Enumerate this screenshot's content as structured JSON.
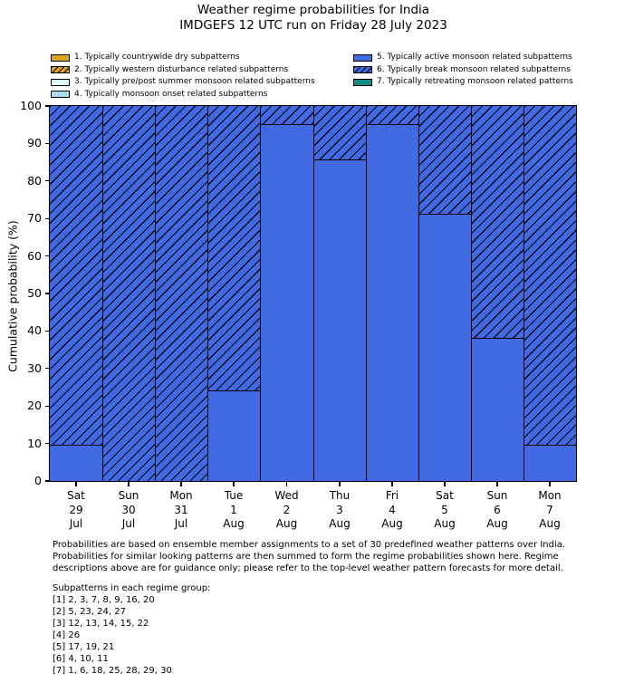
{
  "title": {
    "line1": "Weather regime probabilities for India",
    "line2": "IMDGEFS 12 UTC run on Friday 28 July 2023"
  },
  "legend": {
    "items": [
      {
        "label": "1. Typically countrywide dry subpatterns",
        "color": "#DAA520",
        "hatch": false
      },
      {
        "label": "2. Typically western disturbance related subpatterns",
        "color": "#DAA520",
        "hatch": true
      },
      {
        "label": "3. Typically pre/post summer monsoon related subpatterns",
        "color": "#E0FFFF",
        "hatch": false
      },
      {
        "label": "4. Typically monsoon onset related subpatterns",
        "color": "#ADD8E6",
        "hatch": false
      },
      {
        "label": "5. Typically active monsoon related subpatterns",
        "color": "#4169E1",
        "hatch": false
      },
      {
        "label": "6. Typically break monsoon related subpatterns",
        "color": "#4169E1",
        "hatch": true
      },
      {
        "label": "7. Typically retreating monsoon related patterns",
        "color": "#128A80",
        "hatch": false
      }
    ]
  },
  "chart_data": {
    "type": "bar",
    "stacked": true,
    "title": "Weather regime probabilities for India",
    "subtitle": "IMDGEFS 12 UTC run on Friday 28 July 2023",
    "ylabel": "Cumulative probability (%)",
    "xlabel": "",
    "ylim": [
      0,
      100
    ],
    "yticks": [
      0,
      10,
      20,
      30,
      40,
      50,
      60,
      70,
      80,
      90,
      100
    ],
    "grid": false,
    "legend_position": "top",
    "categories": [
      {
        "day": "Sat",
        "date": "29",
        "month": "Jul"
      },
      {
        "day": "Sun",
        "date": "30",
        "month": "Jul"
      },
      {
        "day": "Mon",
        "date": "31",
        "month": "Jul"
      },
      {
        "day": "Tue",
        "date": "1",
        "month": "Aug"
      },
      {
        "day": "Wed",
        "date": "2",
        "month": "Aug"
      },
      {
        "day": "Thu",
        "date": "3",
        "month": "Aug"
      },
      {
        "day": "Fri",
        "date": "4",
        "month": "Aug"
      },
      {
        "day": "Sat",
        "date": "5",
        "month": "Aug"
      },
      {
        "day": "Sun",
        "date": "6",
        "month": "Aug"
      },
      {
        "day": "Mon",
        "date": "7",
        "month": "Aug"
      }
    ],
    "series": [
      {
        "name": "5. Typically active monsoon related subpatterns",
        "color": "#4169E1",
        "hatch": false,
        "values": [
          9.5,
          0,
          0,
          24,
          95,
          85.5,
          95,
          71,
          38,
          9.5
        ]
      },
      {
        "name": "6. Typically break monsoon related subpatterns",
        "color": "#4169E1",
        "hatch": true,
        "values": [
          90.5,
          100,
          100,
          76,
          5,
          14.5,
          5,
          29,
          62,
          90.5
        ]
      }
    ]
  },
  "footnote": {
    "lines": [
      "Probabilities are based on ensemble member assignments to a set of 30 predefined weather patterns over India.",
      "Probabilities for similar looking patterns are then summed to form the regime probabilities shown here. Regime",
      "descriptions above are for guidance only; please refer to the top-level weather pattern forecasts for more detail."
    ]
  },
  "subpatterns": {
    "heading": "Subpatterns in each regime group:",
    "lines": [
      "[1] 2, 3, 7, 8, 9, 16, 20",
      "[2] 5, 23, 24, 27",
      "[3] 12, 13, 14, 15, 22",
      "[4] 26",
      "[5] 17, 19, 21",
      "[6] 4, 10, 11",
      "[7] 1, 6, 18, 25, 28, 29, 30"
    ]
  }
}
